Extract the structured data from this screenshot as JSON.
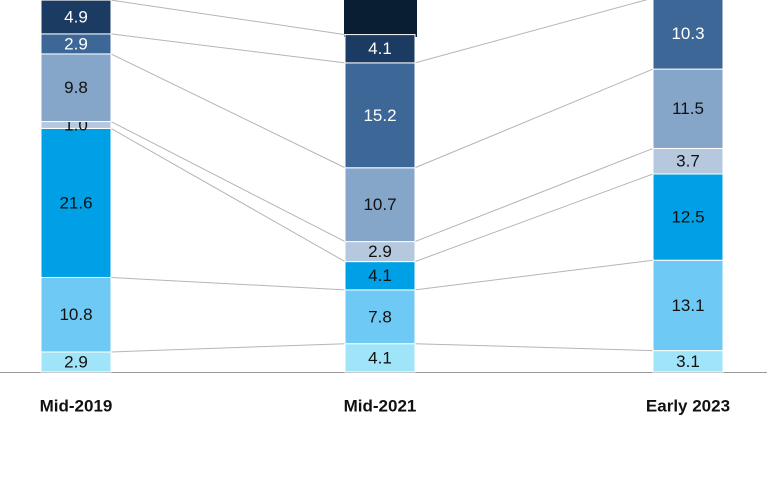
{
  "chart_data": {
    "type": "stacked_bar",
    "categories": [
      "Mid-2019",
      "Mid-2021",
      "Early 2023"
    ],
    "series": [
      {
        "color": "#9fe4f8",
        "values": [
          2.9,
          4.1,
          3.1
        ]
      },
      {
        "color": "#6ecaf5",
        "values": [
          10.8,
          7.8,
          13.1
        ]
      },
      {
        "color": "#00a0e6",
        "values": [
          21.6,
          4.1,
          12.5
        ]
      },
      {
        "color": "#b5c8dd",
        "values": [
          1,
          2.9,
          3.7
        ],
        "value_labels": [
          "1.0",
          "2.9",
          "3.7"
        ]
      },
      {
        "color": "#85a6c9",
        "values": [
          9.8,
          10.7,
          11.5
        ]
      },
      {
        "color": "#3c6796",
        "values": [
          2.9,
          15.2,
          10.3
        ]
      },
      {
        "color": "#1c3b62",
        "values": [
          4.9,
          4.1,
          null
        ]
      }
    ]
  }
}
